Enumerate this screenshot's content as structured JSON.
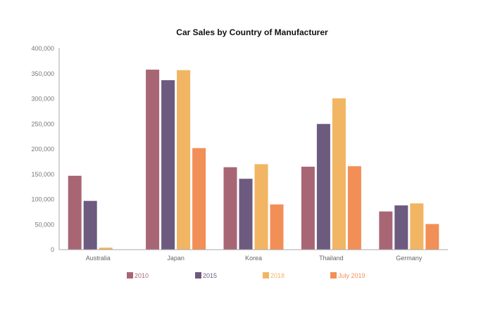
{
  "chart_data": {
    "type": "bar",
    "title": "Car Sales by Country of Manufacturer",
    "xlabel": "",
    "ylabel": "",
    "categories": [
      "Australia",
      "Japan",
      "Korea",
      "Thailand",
      "Germany"
    ],
    "ylim": [
      0,
      400000
    ],
    "yticks": [
      0,
      50000,
      100000,
      150000,
      200000,
      250000,
      300000,
      350000,
      400000
    ],
    "ytick_labels": [
      "0",
      "50,000",
      "100,000",
      "150,000",
      "200,000",
      "250,000",
      "300,000",
      "350,000",
      "400,000"
    ],
    "grid": false,
    "legend_position": "bottom",
    "series": [
      {
        "name": "2010",
        "color": "#a86675",
        "values": [
          147000,
          358000,
          164000,
          165000,
          76000
        ]
      },
      {
        "name": "2015",
        "color": "#6c5a7f",
        "values": [
          97000,
          337000,
          141000,
          250000,
          88000
        ]
      },
      {
        "name": "2018",
        "color": "#f1b563",
        "values": [
          4000,
          357000,
          170000,
          301000,
          92000
        ]
      },
      {
        "name": "July 2019",
        "color": "#f28f57",
        "values": [
          0,
          202000,
          90000,
          166000,
          51000
        ]
      }
    ]
  }
}
